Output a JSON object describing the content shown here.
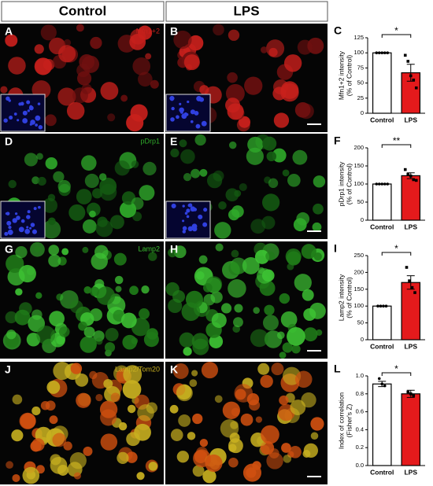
{
  "column_headers": [
    "Control",
    "LPS"
  ],
  "image_panels": [
    {
      "label": "A",
      "stain": "Mfn1+2"
    },
    {
      "label": "B"
    },
    {
      "label": "D",
      "stain": "pDrp1"
    },
    {
      "label": "E"
    },
    {
      "label": "G",
      "stain": "Lamp2"
    },
    {
      "label": "H"
    },
    {
      "label": "J",
      "stain": "Lamp2/Tom20"
    },
    {
      "label": "K"
    }
  ],
  "chart_data": [
    {
      "type": "bar",
      "panel": "C",
      "ylabel": [
        "Mfn1+2 intensity",
        "(% of Control)"
      ],
      "categories": [
        "Control",
        "LPS"
      ],
      "values": [
        100,
        67
      ],
      "errors": [
        0,
        14
      ],
      "points": [
        [
          100,
          100,
          100,
          100,
          100
        ],
        [
          96,
          86,
          62,
          55,
          42
        ]
      ],
      "colors": [
        "#ffffff",
        "#e41a1c"
      ],
      "ylim": [
        0,
        125
      ],
      "yticks": [
        0,
        25,
        50,
        75,
        100,
        125
      ],
      "significance": "*"
    },
    {
      "type": "bar",
      "panel": "F",
      "ylabel": [
        "pDrp1 intensity",
        "(% of Control)"
      ],
      "categories": [
        "Control",
        "LPS"
      ],
      "values": [
        100,
        123
      ],
      "errors": [
        0,
        8
      ],
      "points": [
        [
          100,
          100,
          100,
          100,
          100
        ],
        [
          140,
          127,
          122,
          112,
          110
        ]
      ],
      "colors": [
        "#ffffff",
        "#e41a1c"
      ],
      "ylim": [
        0,
        200
      ],
      "yticks": [
        0,
        50,
        100,
        150,
        200
      ],
      "significance": "**"
    },
    {
      "type": "bar",
      "panel": "I",
      "ylabel": [
        "Lamp2 intensity",
        "(% of Control)"
      ],
      "categories": [
        "Control",
        "LPS"
      ],
      "values": [
        100,
        170
      ],
      "errors": [
        0,
        20
      ],
      "points": [
        [
          100,
          100,
          100,
          100
        ],
        [
          215,
          175,
          155,
          140
        ]
      ],
      "colors": [
        "#ffffff",
        "#e41a1c"
      ],
      "ylim": [
        0,
        250
      ],
      "yticks": [
        0,
        50,
        100,
        150,
        200,
        250
      ],
      "significance": "*"
    },
    {
      "type": "bar",
      "panel": "L",
      "ylabel": [
        "Index of correlation",
        "(Fisher's Z)"
      ],
      "categories": [
        "Control",
        "LPS"
      ],
      "values": [
        0.91,
        0.8
      ],
      "errors": [
        0.03,
        0.04
      ],
      "points": [
        [
          0.97,
          0.91,
          0.89
        ],
        [
          0.82,
          0.8,
          0.78
        ]
      ],
      "colors": [
        "#ffffff",
        "#e41a1c"
      ],
      "ylim": [
        0,
        1.0
      ],
      "yticks": [
        {
          "value": 0,
          "label": "0.0"
        },
        {
          "value": 0.2,
          "label": "0.2"
        },
        {
          "value": 0.4,
          "label": "0.4"
        },
        {
          "value": 0.6,
          "label": "0.6"
        },
        {
          "value": 0.8,
          "label": "0.8"
        },
        {
          "value": 1.0,
          "label": "1.0"
        }
      ],
      "significance": "*"
    }
  ]
}
